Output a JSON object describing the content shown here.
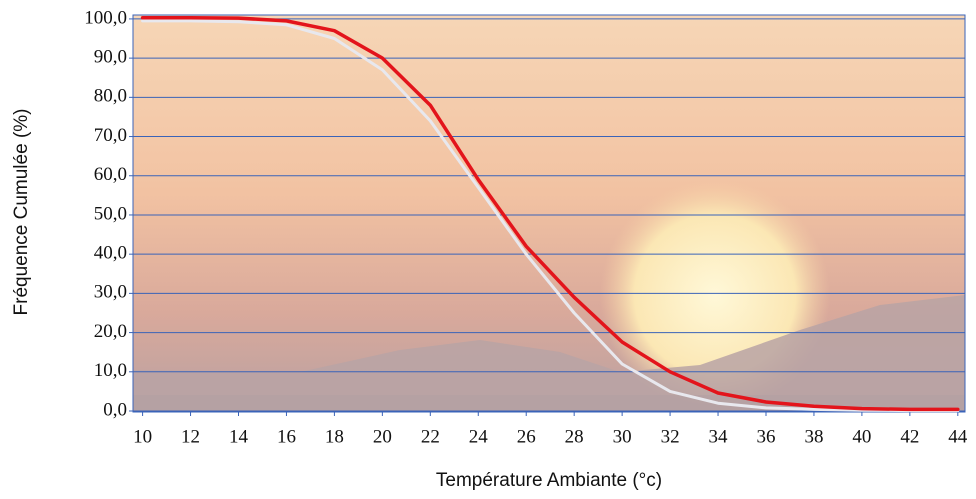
{
  "chart_data": {
    "type": "line",
    "x_label": "Température Ambiante (°c)",
    "y_label": "Fréquence Cumulée (%)",
    "x": [
      10,
      12,
      14,
      16,
      18,
      20,
      22,
      24,
      26,
      28,
      30,
      32,
      34,
      36,
      38,
      40,
      42,
      44
    ],
    "series": [
      {
        "color": "#e8e8ee",
        "values": [
          99.5,
          99.5,
          99.3,
          98.5,
          95,
          87,
          74,
          57,
          40,
          25,
          12,
          5,
          2,
          0.8,
          0.4,
          0.2,
          0.1,
          0.1
        ]
      },
      {
        "color": "#e3141b",
        "values": [
          100.3,
          100.3,
          100.2,
          99.5,
          97,
          90,
          78,
          59,
          42,
          29,
          17.6,
          10,
          4.6,
          2.3,
          1.2,
          0.6,
          0.4,
          0.4
        ]
      }
    ],
    "xlim": [
      9.6,
      44.3
    ],
    "ylim": [
      0,
      101
    ],
    "xticks": [
      10,
      12,
      14,
      16,
      18,
      20,
      22,
      24,
      26,
      28,
      30,
      32,
      34,
      36,
      38,
      40,
      42,
      44
    ],
    "yticks": [
      {
        "value": 0,
        "label": "0,0"
      },
      {
        "value": 10,
        "label": "10,0"
      },
      {
        "value": 20,
        "label": "20,0"
      },
      {
        "value": 30,
        "label": "30,0"
      },
      {
        "value": 40,
        "label": "40,0"
      },
      {
        "value": 50,
        "label": "50,0"
      },
      {
        "value": 60,
        "label": "60,0"
      },
      {
        "value": 70,
        "label": "70,0"
      },
      {
        "value": 80,
        "label": "80,0"
      },
      {
        "value": 90,
        "label": "90,0"
      },
      {
        "value": 100,
        "label": "100,0"
      }
    ],
    "grid": true,
    "grid_color": "#3a63b8"
  }
}
